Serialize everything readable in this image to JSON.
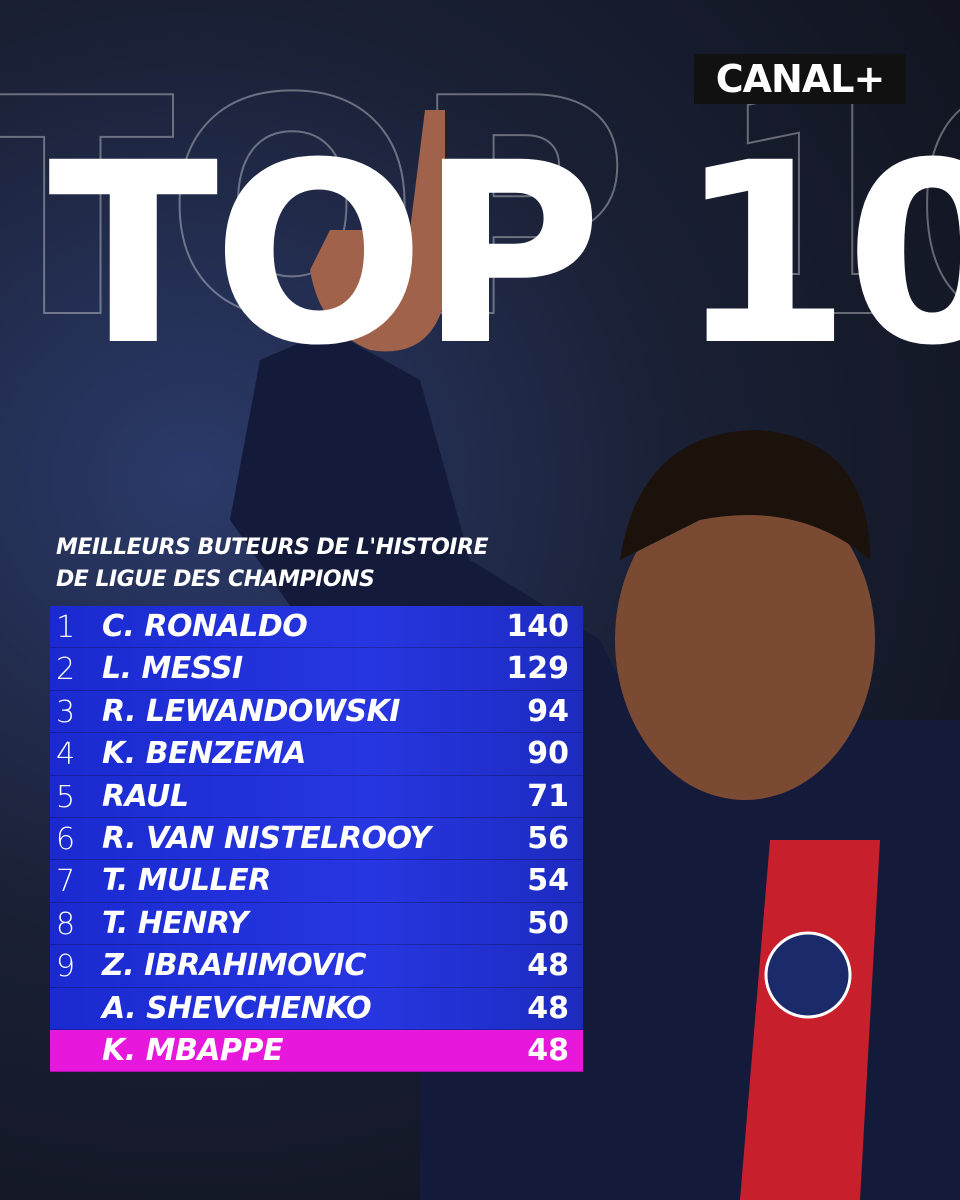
{
  "brand": "CANAL+",
  "headline": "TOP 10",
  "subtitle": [
    "MEILLEURS BUTEURS DE L'HISTOIRE",
    "DE LIGUE DES CHAMPIONS"
  ],
  "table": {
    "rows": [
      {
        "rank": 1,
        "name": "C. RONALDO",
        "goals": 140
      },
      {
        "rank": 2,
        "name": "L. MESSI",
        "goals": 129
      },
      {
        "rank": 3,
        "name": "R. LEWANDOWSKI",
        "goals": 94
      },
      {
        "rank": 4,
        "name": "K. BENZEMA",
        "goals": 90
      },
      {
        "rank": 5,
        "name": "RAUL",
        "goals": 71
      },
      {
        "rank": 6,
        "name": "R. VAN NISTELROOY",
        "goals": 56
      },
      {
        "rank": 7,
        "name": "T. MULLER",
        "goals": 54
      },
      {
        "rank": 8,
        "name": "T. HENRY",
        "goals": 50
      },
      {
        "rank": 9,
        "name": "Z. IBRAHIMOVIC",
        "goals": 48
      },
      {
        "name": "A. SHEVCHENKO",
        "goals": 48
      },
      {
        "name": "K. MBAPPE",
        "goals": 48,
        "highlight": true
      }
    ]
  }
}
